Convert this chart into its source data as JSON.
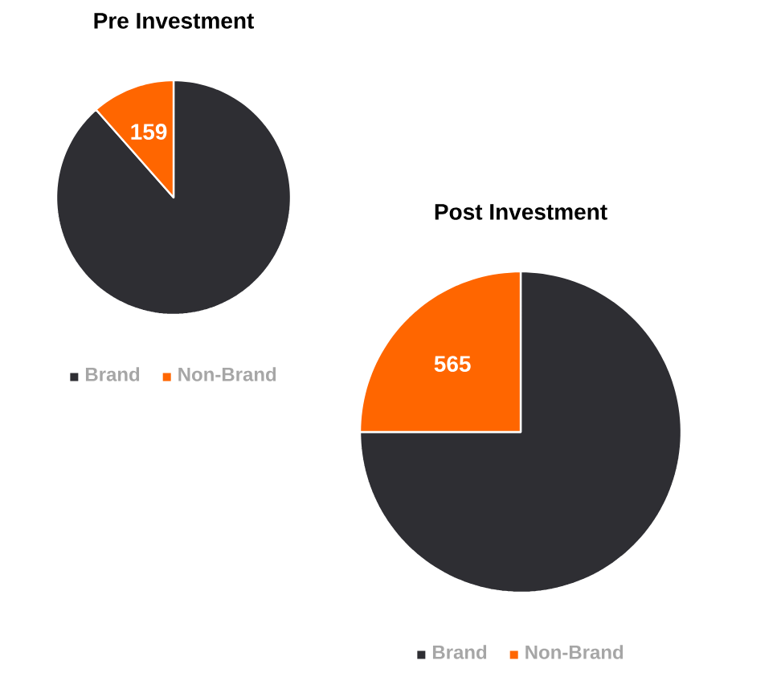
{
  "chart_data": [
    {
      "type": "pie",
      "title": "Pre Investment",
      "categories": [
        "Brand",
        "Non-Brand"
      ],
      "values": [
        1224,
        159
      ],
      "colors": [
        "#2e2e33",
        "#ff6600"
      ],
      "value_labels": [
        null,
        "159"
      ],
      "legend": "bottom"
    },
    {
      "type": "pie",
      "title": "Post Investment",
      "categories": [
        "Brand",
        "Non-Brand"
      ],
      "values": [
        1695,
        565
      ],
      "colors": [
        "#2e2e33",
        "#ff6600"
      ],
      "value_labels": [
        null,
        "565"
      ],
      "legend": "bottom"
    }
  ]
}
